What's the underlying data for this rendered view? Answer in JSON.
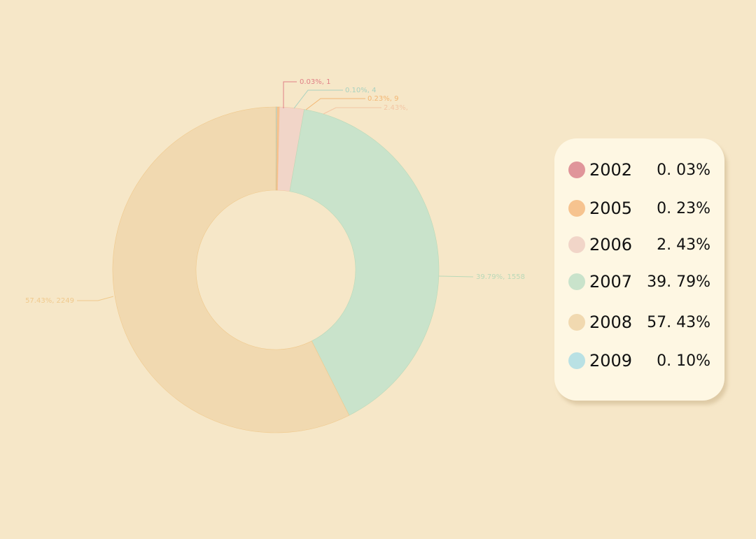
{
  "chart_data": {
    "type": "donut",
    "categories": [
      "2002",
      "2009",
      "2005",
      "2006",
      "2007",
      "2008"
    ],
    "values": [
      0.03,
      0.1,
      0.23,
      2.43,
      39.79,
      57.43
    ],
    "value_labels": [
      "0.03%, 1",
      "0.10%, 4",
      "0.23%, 9",
      "2.43%,",
      "39.79%, 1558",
      "57.43%, 2249"
    ],
    "legend_labels": [
      "0. 03%",
      "0. 10%",
      "0. 23%",
      "2. 43%",
      "39. 79%",
      "57. 43%"
    ],
    "colors": [
      "#e0959a",
      "#b9e1e4",
      "#f6c38f",
      "#f1d5c8",
      "#c9e3cb",
      "#f1d9b0"
    ],
    "label_colors": [
      "#e07f86",
      "#a9d2c0",
      "#f3b673",
      "#f3c6a4",
      "#b9d9b8",
      "#f0c98c"
    ]
  }
}
